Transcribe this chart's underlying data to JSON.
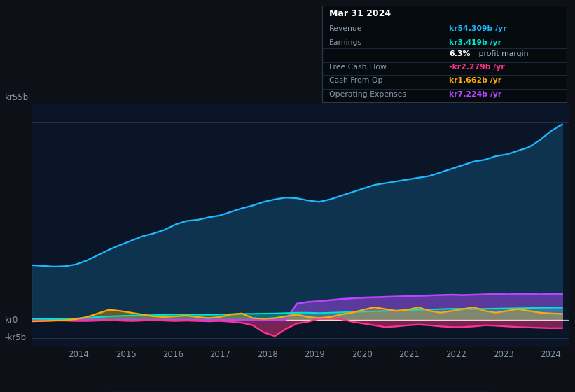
{
  "bg_color": "#0d1117",
  "chart_bg": "#0a1628",
  "title_label": "kr55b",
  "zero_label": "kr0",
  "neg_label": "-kr5b",
  "x_ticks": [
    2014,
    2015,
    2016,
    2017,
    2018,
    2019,
    2020,
    2021,
    2022,
    2023,
    2024
  ],
  "ylim": [
    -7.5,
    60
  ],
  "line_colors": {
    "revenue": "#1eb8ff",
    "earnings": "#00e5cc",
    "free_cash_flow": "#ff3388",
    "cash_from_op": "#ffaa00",
    "operating_expenses": "#bb44ff"
  },
  "tooltip": {
    "date": "Mar 31 2024",
    "revenue_label": "Revenue",
    "revenue_val": "kr54.309b",
    "earnings_label": "Earnings",
    "earnings_val": "kr3.419b",
    "profit_pct": "6.3%",
    "fcf_label": "Free Cash Flow",
    "fcf_val": "-kr2.279b",
    "cfo_label": "Cash From Op",
    "cfo_val": "kr1.662b",
    "opex_label": "Operating Expenses",
    "opex_val": "kr7.224b"
  },
  "revenue": [
    15.2,
    15.0,
    14.8,
    14.9,
    15.4,
    16.5,
    18.0,
    19.5,
    20.8,
    22.0,
    23.2,
    24.0,
    25.0,
    26.5,
    27.5,
    27.8,
    28.5,
    29.0,
    30.0,
    31.0,
    31.8,
    32.8,
    33.5,
    34.0,
    33.8,
    33.2,
    32.8,
    33.5,
    34.5,
    35.5,
    36.5,
    37.5,
    38.0,
    38.5,
    39.0,
    39.5,
    40.0,
    41.0,
    42.0,
    43.0,
    44.0,
    44.5,
    45.5,
    46.0,
    47.0,
    48.0,
    50.0,
    52.5,
    54.3
  ],
  "earnings": [
    0.3,
    0.25,
    0.2,
    0.25,
    0.4,
    0.6,
    0.8,
    1.0,
    1.1,
    1.2,
    1.3,
    1.35,
    1.4,
    1.5,
    1.5,
    1.45,
    1.4,
    1.5,
    1.6,
    1.7,
    1.7,
    1.75,
    1.8,
    1.9,
    2.0,
    2.0,
    1.9,
    2.0,
    2.1,
    2.2,
    2.3,
    2.4,
    2.5,
    2.6,
    2.7,
    2.8,
    2.9,
    3.0,
    3.1,
    3.1,
    3.0,
    3.1,
    3.15,
    3.2,
    3.25,
    3.3,
    3.35,
    3.4,
    3.419
  ],
  "free_cash_flow": [
    -0.3,
    -0.3,
    -0.2,
    -0.2,
    -0.3,
    -0.3,
    -0.2,
    -0.1,
    -0.2,
    -0.3,
    -0.2,
    -0.1,
    -0.2,
    -0.3,
    -0.2,
    -0.3,
    -0.4,
    -0.3,
    -0.5,
    -0.8,
    -1.5,
    -3.5,
    -4.5,
    -2.5,
    -1.0,
    -0.5,
    0.3,
    0.5,
    0.2,
    -0.5,
    -1.0,
    -1.5,
    -2.0,
    -1.8,
    -1.5,
    -1.3,
    -1.5,
    -1.8,
    -2.0,
    -2.0,
    -1.8,
    -1.5,
    -1.6,
    -1.8,
    -2.0,
    -2.1,
    -2.2,
    -2.3,
    -2.279
  ],
  "cash_from_op": [
    -0.4,
    -0.3,
    -0.2,
    -0.1,
    0.2,
    0.8,
    1.8,
    2.8,
    2.5,
    2.0,
    1.5,
    1.0,
    0.8,
    1.0,
    1.2,
    0.8,
    0.5,
    0.8,
    1.5,
    1.8,
    0.5,
    0.3,
    0.5,
    1.0,
    1.5,
    0.8,
    0.5,
    0.8,
    1.5,
    2.0,
    2.8,
    3.5,
    3.0,
    2.5,
    2.8,
    3.5,
    2.5,
    2.0,
    2.5,
    3.0,
    3.5,
    2.5,
    2.0,
    2.5,
    3.0,
    2.5,
    2.0,
    1.8,
    1.662
  ],
  "operating_expenses": [
    0.0,
    0.0,
    0.0,
    0.0,
    0.0,
    0.0,
    0.0,
    0.0,
    0.0,
    0.0,
    0.0,
    0.0,
    0.0,
    0.0,
    0.0,
    0.0,
    0.0,
    0.0,
    0.0,
    0.0,
    0.0,
    0.0,
    0.0,
    0.0,
    4.5,
    5.0,
    5.2,
    5.5,
    5.8,
    6.0,
    6.2,
    6.3,
    6.4,
    6.5,
    6.6,
    6.7,
    6.8,
    6.9,
    7.0,
    6.9,
    7.0,
    7.1,
    7.2,
    7.1,
    7.2,
    7.2,
    7.1,
    7.2,
    7.224
  ]
}
